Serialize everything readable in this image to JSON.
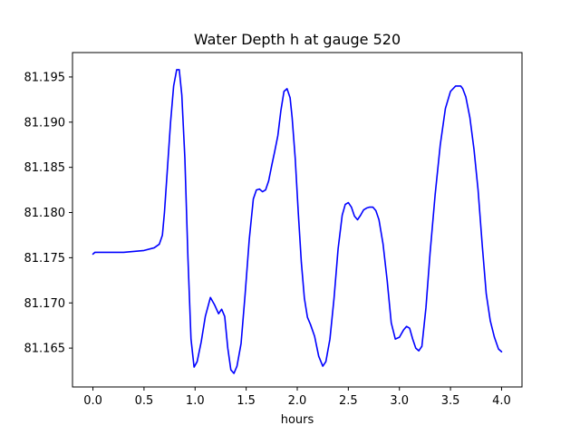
{
  "chart_data": {
    "type": "line",
    "title": "Water Depth h at gauge 520",
    "xlabel": "hours",
    "ylabel": "",
    "xlim": [
      -0.2,
      4.2
    ],
    "ylim": [
      81.1607,
      81.1977
    ],
    "xticks": [
      0.0,
      0.5,
      1.0,
      1.5,
      2.0,
      2.5,
      3.0,
      3.5,
      4.0
    ],
    "xtick_labels": [
      "0.0",
      "0.5",
      "1.0",
      "1.5",
      "2.0",
      "2.5",
      "3.0",
      "3.5",
      "4.0"
    ],
    "yticks": [
      81.165,
      81.17,
      81.175,
      81.18,
      81.185,
      81.19,
      81.195
    ],
    "ytick_labels": [
      "81.165",
      "81.170",
      "81.175",
      "81.180",
      "81.185",
      "81.190",
      "81.195"
    ],
    "grid": false,
    "series": [
      {
        "color": "#0000ff",
        "x": [
          0.0,
          0.02,
          0.1,
          0.2,
          0.3,
          0.4,
          0.5,
          0.6,
          0.65,
          0.68,
          0.7,
          0.73,
          0.76,
          0.79,
          0.82,
          0.845,
          0.87,
          0.9,
          0.93,
          0.96,
          0.99,
          1.02,
          1.06,
          1.1,
          1.15,
          1.19,
          1.23,
          1.26,
          1.29,
          1.32,
          1.35,
          1.38,
          1.41,
          1.45,
          1.49,
          1.53,
          1.57,
          1.6,
          1.63,
          1.66,
          1.69,
          1.72,
          1.75,
          1.78,
          1.81,
          1.84,
          1.87,
          1.9,
          1.93,
          1.95,
          1.98,
          2.01,
          2.04,
          2.07,
          2.1,
          2.13,
          2.17,
          2.21,
          2.25,
          2.28,
          2.32,
          2.36,
          2.4,
          2.44,
          2.47,
          2.5,
          2.53,
          2.56,
          2.59,
          2.62,
          2.65,
          2.68,
          2.71,
          2.74,
          2.77,
          2.8,
          2.84,
          2.88,
          2.92,
          2.96,
          3.0,
          3.04,
          3.07,
          3.1,
          3.13,
          3.16,
          3.19,
          3.22,
          3.26,
          3.3,
          3.35,
          3.4,
          3.45,
          3.5,
          3.55,
          3.6,
          3.62,
          3.65,
          3.69,
          3.73,
          3.77,
          3.81,
          3.85,
          3.89,
          3.93,
          3.97,
          4.0
        ],
        "y": [
          81.1754,
          81.1756,
          81.1756,
          81.1756,
          81.1756,
          81.1757,
          81.1758,
          81.1761,
          81.1765,
          81.1775,
          81.18,
          81.185,
          81.19,
          81.194,
          81.1958,
          81.1958,
          81.193,
          81.186,
          81.175,
          81.166,
          81.1629,
          81.1635,
          81.1657,
          81.1685,
          81.1706,
          81.1698,
          81.1688,
          81.1693,
          81.1685,
          81.165,
          81.1626,
          81.1622,
          81.163,
          81.1655,
          81.171,
          81.177,
          81.1815,
          81.1825,
          81.1826,
          81.1823,
          81.1825,
          81.1835,
          81.1852,
          81.1868,
          81.1885,
          81.1913,
          81.1934,
          81.1937,
          81.1927,
          81.1905,
          81.186,
          81.18,
          81.1745,
          81.1705,
          81.1684,
          81.1676,
          81.1663,
          81.1641,
          81.163,
          81.1635,
          81.166,
          81.1705,
          81.176,
          81.1797,
          81.1809,
          81.1811,
          81.1806,
          81.1796,
          81.1792,
          81.1797,
          81.1803,
          81.1805,
          81.1806,
          81.1806,
          81.1802,
          81.1792,
          81.1765,
          81.1725,
          81.1678,
          81.166,
          81.1662,
          81.167,
          81.1674,
          81.1672,
          81.166,
          81.165,
          81.1647,
          81.1652,
          81.1695,
          81.1755,
          81.182,
          81.1875,
          81.1915,
          81.1934,
          81.194,
          81.194,
          81.1937,
          81.1928,
          81.1905,
          81.187,
          81.1825,
          81.1765,
          81.171,
          81.168,
          81.1662,
          81.1649,
          81.1646
        ]
      }
    ]
  }
}
